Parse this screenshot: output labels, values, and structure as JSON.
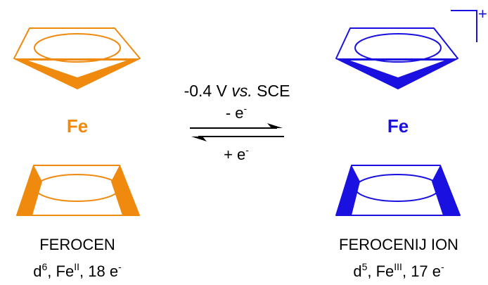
{
  "colors": {
    "ferrocene": "#F08A0F",
    "ferrocenium": "#1A10E0",
    "text": "#000000"
  },
  "ferrocene": {
    "metal": "Fe",
    "name": "FEROCEN",
    "config": {
      "d_base": "d",
      "d_sup": "6",
      "ox_base": "Fe",
      "ox_sup": "II",
      "e_base": "18 e",
      "e_sup": "-"
    }
  },
  "ferrocenium": {
    "metal": "Fe",
    "name": "FEROCENIJ ION",
    "charge": "+",
    "config": {
      "d_base": "d",
      "d_sup": "5",
      "ox_base": "Fe",
      "ox_sup": "III",
      "e_base": "17 e",
      "e_sup": "-"
    }
  },
  "equilibrium": {
    "potential": "-0.4 V",
    "vs": "vs.",
    "reference": "SCE",
    "forward_base": "- e",
    "forward_sup": "-",
    "reverse_base": "+ e",
    "reverse_sup": "-"
  }
}
